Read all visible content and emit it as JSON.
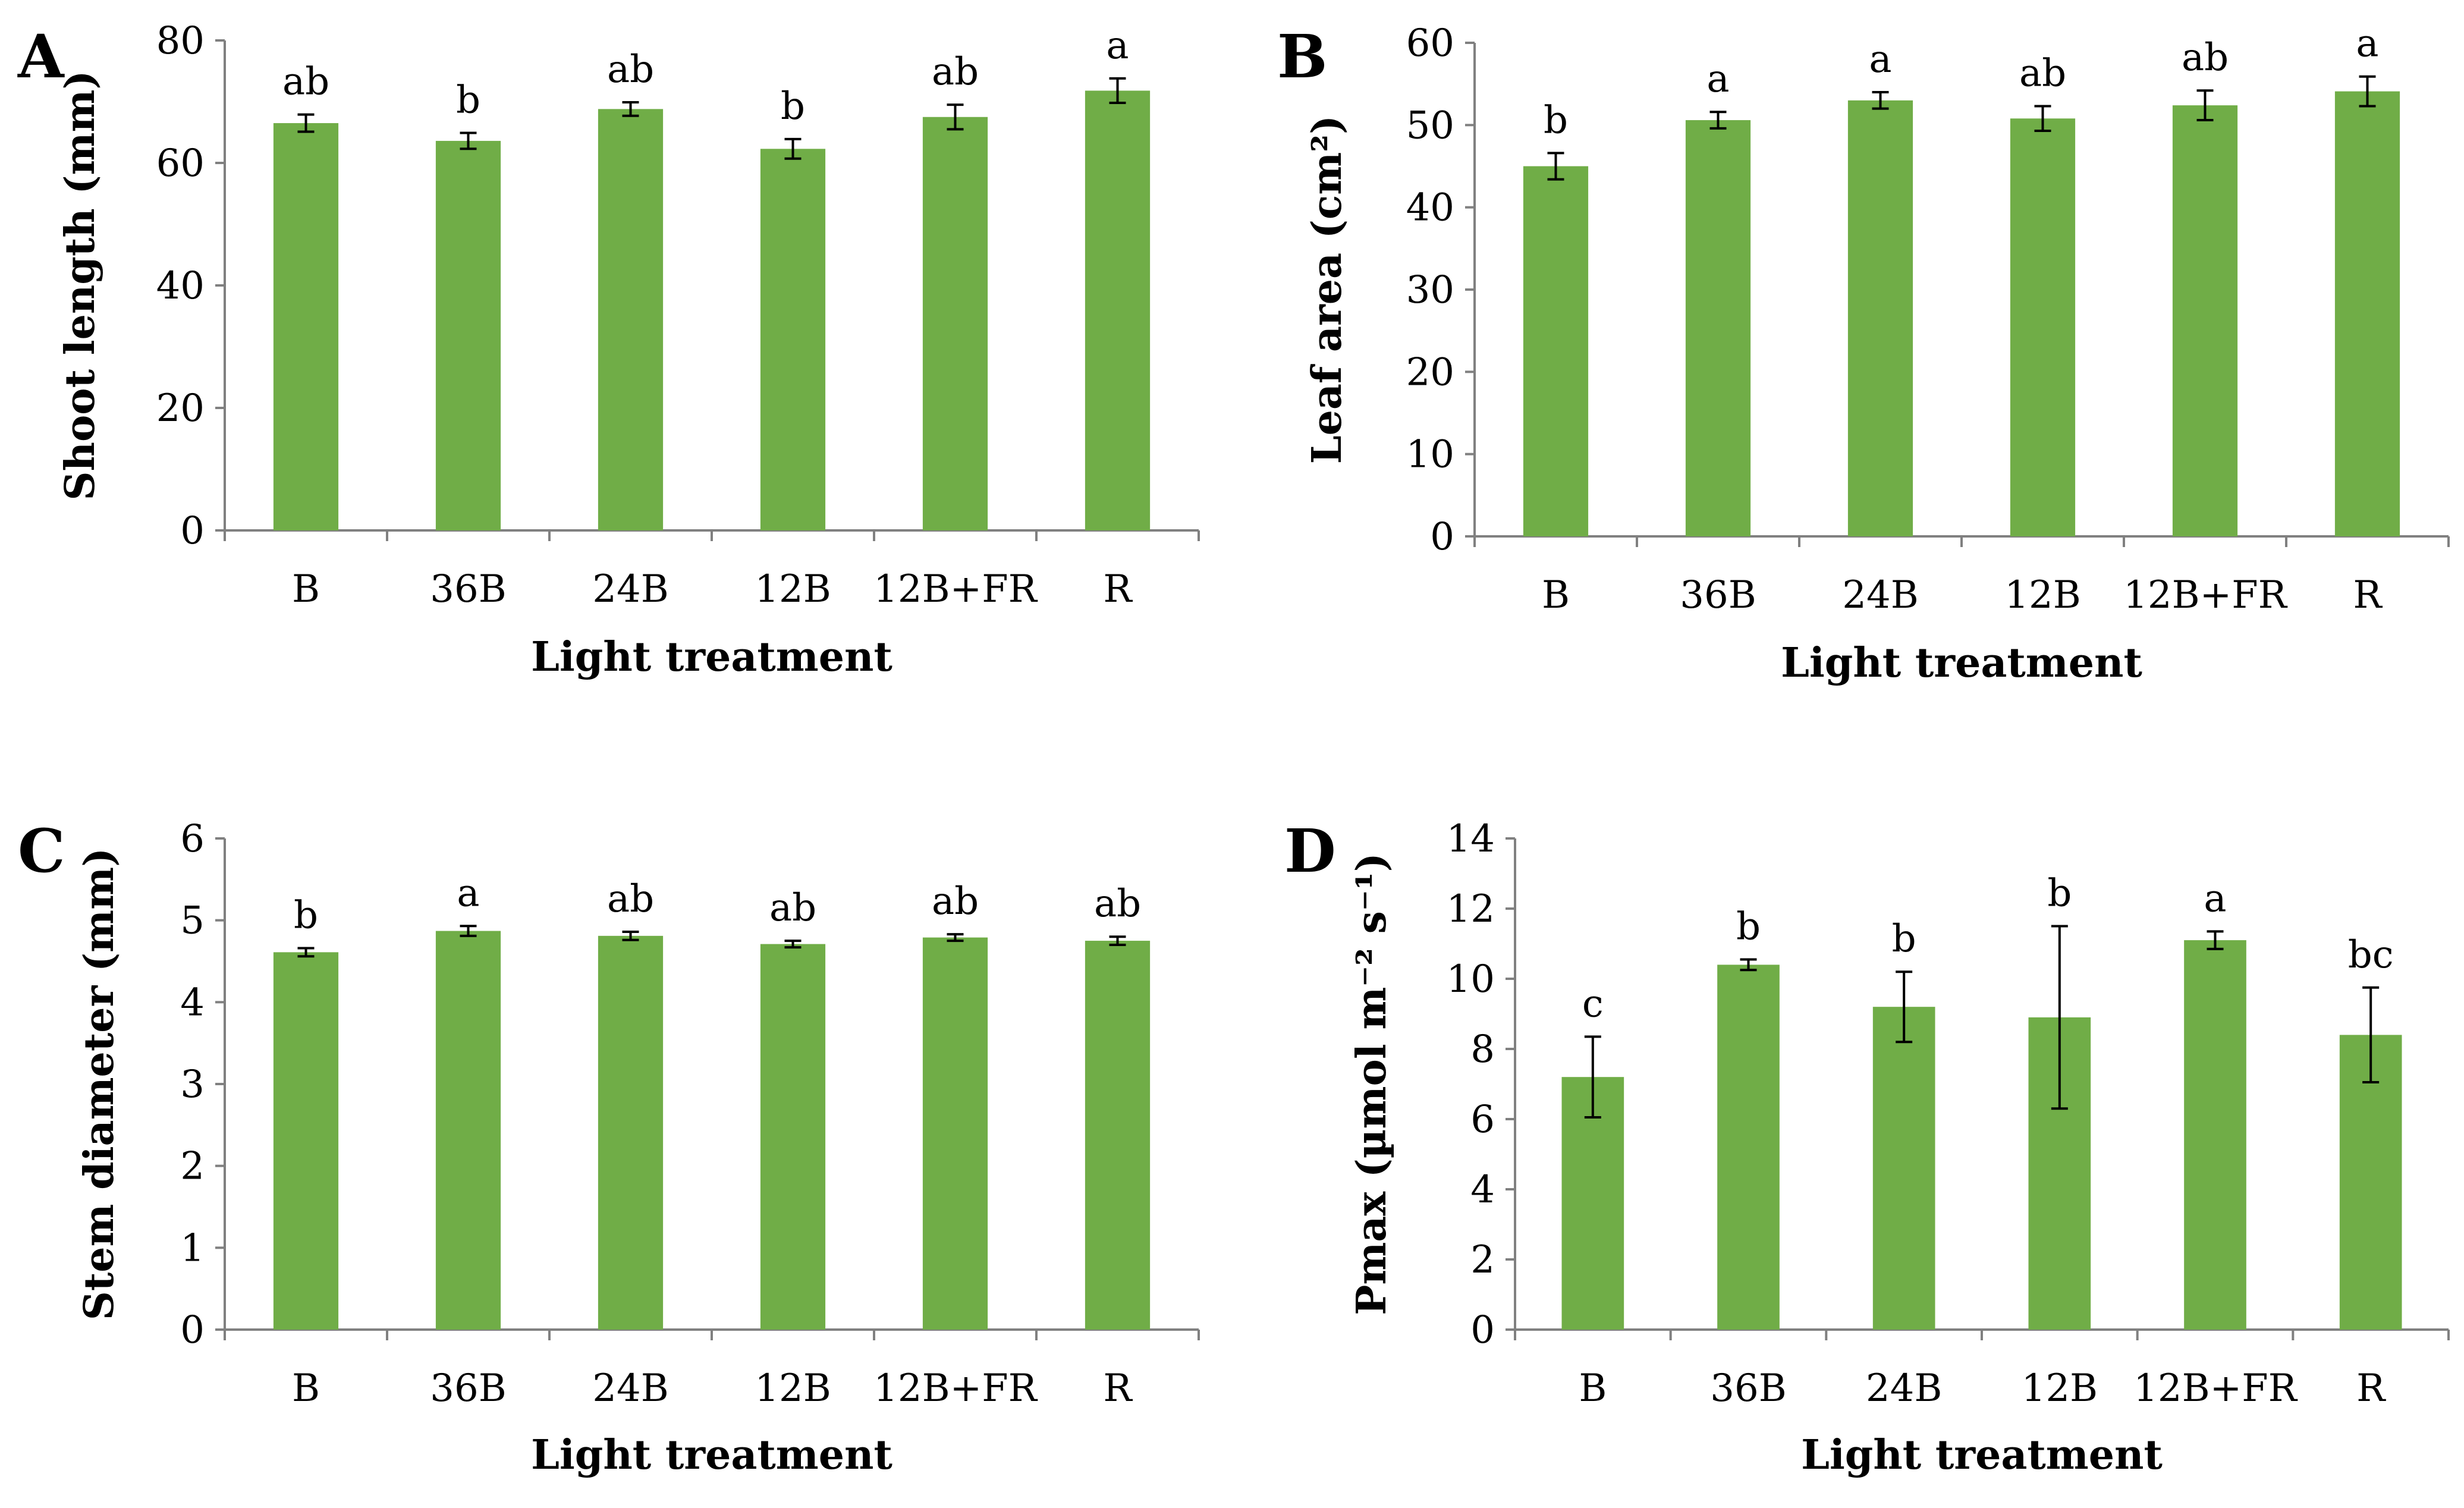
{
  "chart_data": [
    {
      "type": "bar",
      "panel": "A",
      "categories": [
        "B",
        "36B",
        "24B",
        "12B",
        "12B+FR",
        "R"
      ],
      "values": [
        66.5,
        63.6,
        68.8,
        62.3,
        67.5,
        71.8
      ],
      "errors": [
        1.4,
        1.3,
        1.1,
        1.6,
        2.0,
        2.0
      ],
      "significance": [
        "ab",
        "b",
        "ab",
        "b",
        "ab",
        "a"
      ],
      "ylabel": "Shoot length (mm)",
      "xlabel": "Light treatment",
      "ylim": [
        0,
        80
      ],
      "yticks": [
        0,
        20,
        40,
        60,
        80
      ],
      "bar_color": "#70ad47"
    },
    {
      "type": "bar",
      "panel": "B",
      "categories": [
        "B",
        "36B",
        "24B",
        "12B",
        "12B+FR",
        "R"
      ],
      "values": [
        45.0,
        50.6,
        53.0,
        50.8,
        52.4,
        54.1
      ],
      "errors": [
        1.6,
        1.0,
        1.0,
        1.5,
        1.8,
        1.8
      ],
      "significance": [
        "b",
        "a",
        "a",
        "ab",
        "ab",
        "a"
      ],
      "ylabel": "Leaf area (cm²)",
      "xlabel": "Light treatment",
      "ylim": [
        0,
        60
      ],
      "yticks": [
        0,
        10,
        20,
        30,
        40,
        50,
        60
      ],
      "bar_color": "#70ad47"
    },
    {
      "type": "bar",
      "panel": "C",
      "categories": [
        "B",
        "36B",
        "24B",
        "12B",
        "12B+FR",
        "R"
      ],
      "values": [
        4.61,
        4.87,
        4.81,
        4.71,
        4.79,
        4.75
      ],
      "errors": [
        0.05,
        0.06,
        0.05,
        0.04,
        0.04,
        0.05
      ],
      "significance": [
        "b",
        "a",
        "ab",
        "ab",
        "ab",
        "ab"
      ],
      "ylabel": "Stem diameter (mm)",
      "xlabel": "Light treatment",
      "ylim": [
        0,
        6
      ],
      "yticks": [
        0,
        1,
        2,
        3,
        4,
        5,
        6
      ],
      "bar_color": "#70ad47"
    },
    {
      "type": "bar",
      "panel": "D",
      "categories": [
        "B",
        "36B",
        "24B",
        "12B",
        "12B+FR",
        "R"
      ],
      "values": [
        7.2,
        10.4,
        9.2,
        8.9,
        11.1,
        8.4
      ],
      "errors": [
        1.15,
        0.15,
        1.0,
        2.6,
        0.25,
        1.35
      ],
      "significance": [
        "c",
        "b",
        "b",
        "b",
        "a",
        "bc"
      ],
      "ylabel": "Pmax (µmol m⁻² s⁻¹)",
      "xlabel": "Light treatment",
      "ylim": [
        0,
        14
      ],
      "yticks": [
        0,
        2,
        4,
        6,
        8,
        10,
        12,
        14
      ],
      "bar_color": "#70ad47"
    }
  ]
}
